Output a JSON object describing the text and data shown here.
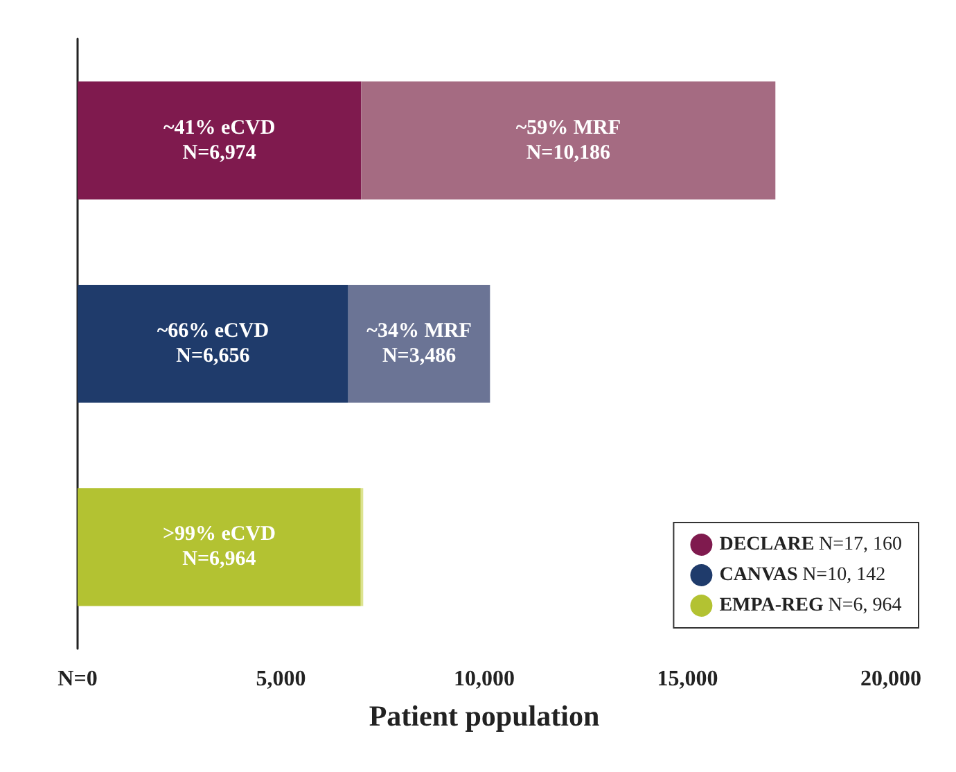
{
  "chart_data": {
    "type": "bar",
    "orientation": "horizontal",
    "stacked": true,
    "categories": [
      null,
      null,
      null
    ],
    "series": [
      {
        "name": "DECLARE N=17, 160",
        "color": "#7f1a4e",
        "values": [
          6974,
          null,
          null
        ],
        "value_labels": [
          "~41% eCVD\nN=6,974",
          null,
          null
        ]
      },
      {
        "color": "#a56b82",
        "values": [
          10186,
          null,
          null
        ],
        "value_labels": [
          "~59% MRF\nN=10,186",
          null,
          null
        ]
      },
      {
        "name": "CANVAS N=10, 142",
        "color": "#1f3b6b",
        "values": [
          null,
          6656,
          null
        ],
        "value_labels": [
          null,
          "~66% eCVD\nN=6,656",
          null
        ]
      },
      {
        "color": "#6b7495",
        "values": [
          null,
          3486,
          null
        ],
        "value_labels": [
          null,
          "~34% MRF\nN=3,486",
          null
        ]
      },
      {
        "name": "EMPA-REG N=6, 964",
        "color": "#b3c232",
        "values": [
          null,
          null,
          6964
        ],
        "value_labels": [
          null,
          null,
          ">99% eCVD\nN=6,964"
        ]
      },
      {
        "color": "#dce38f",
        "values": [
          null,
          null,
          60
        ],
        "value_labels": [
          null,
          null,
          null
        ]
      }
    ],
    "xlim": [
      0,
      20000
    ],
    "xticks": [
      {
        "value": 0,
        "label": "N=0"
      },
      {
        "value": 5000,
        "label": "5,000"
      },
      {
        "value": 10000,
        "label": "10,000"
      },
      {
        "value": 15000,
        "label": "15,000"
      },
      {
        "value": 20000,
        "label": "20,000"
      }
    ],
    "xlabel": "Patient population",
    "grid": false,
    "legend": "bottom right"
  }
}
